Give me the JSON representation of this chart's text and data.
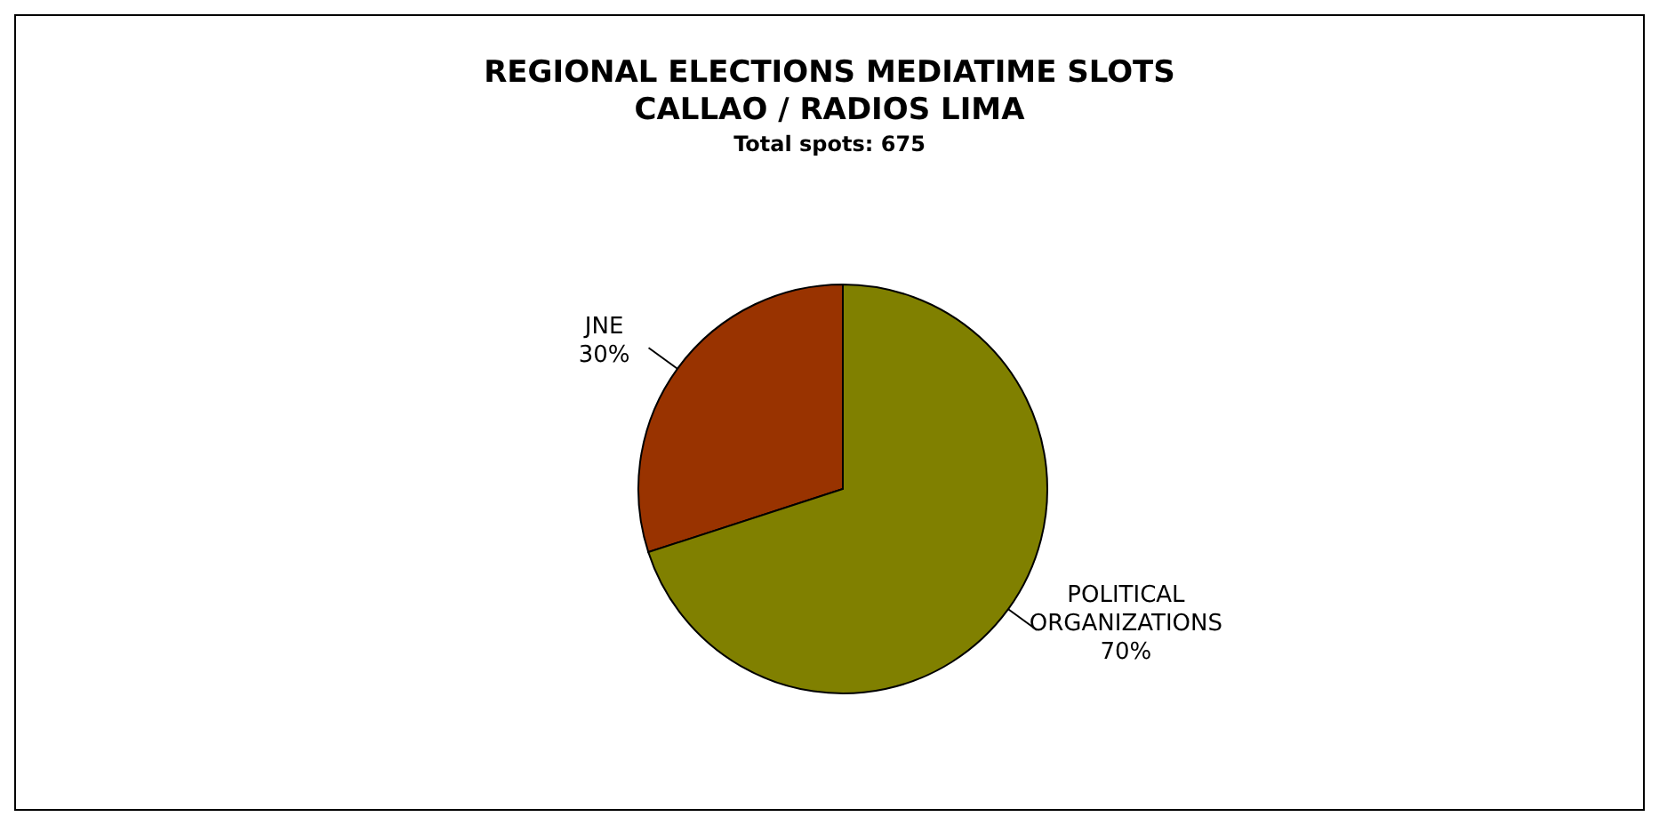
{
  "chart_data": {
    "type": "pie",
    "title": "REGIONAL ELECTIONS MEDIATIME SLOTS\nCALLAO / RADIOS  LIMA",
    "subtitle": "Total spots: 675",
    "categories": [
      "JNE",
      "POLITICAL ORGANIZATIONS"
    ],
    "values": [
      30,
      70
    ],
    "value_labels": [
      "30%",
      "70%"
    ],
    "colors": [
      "#993300",
      "#808000"
    ]
  }
}
